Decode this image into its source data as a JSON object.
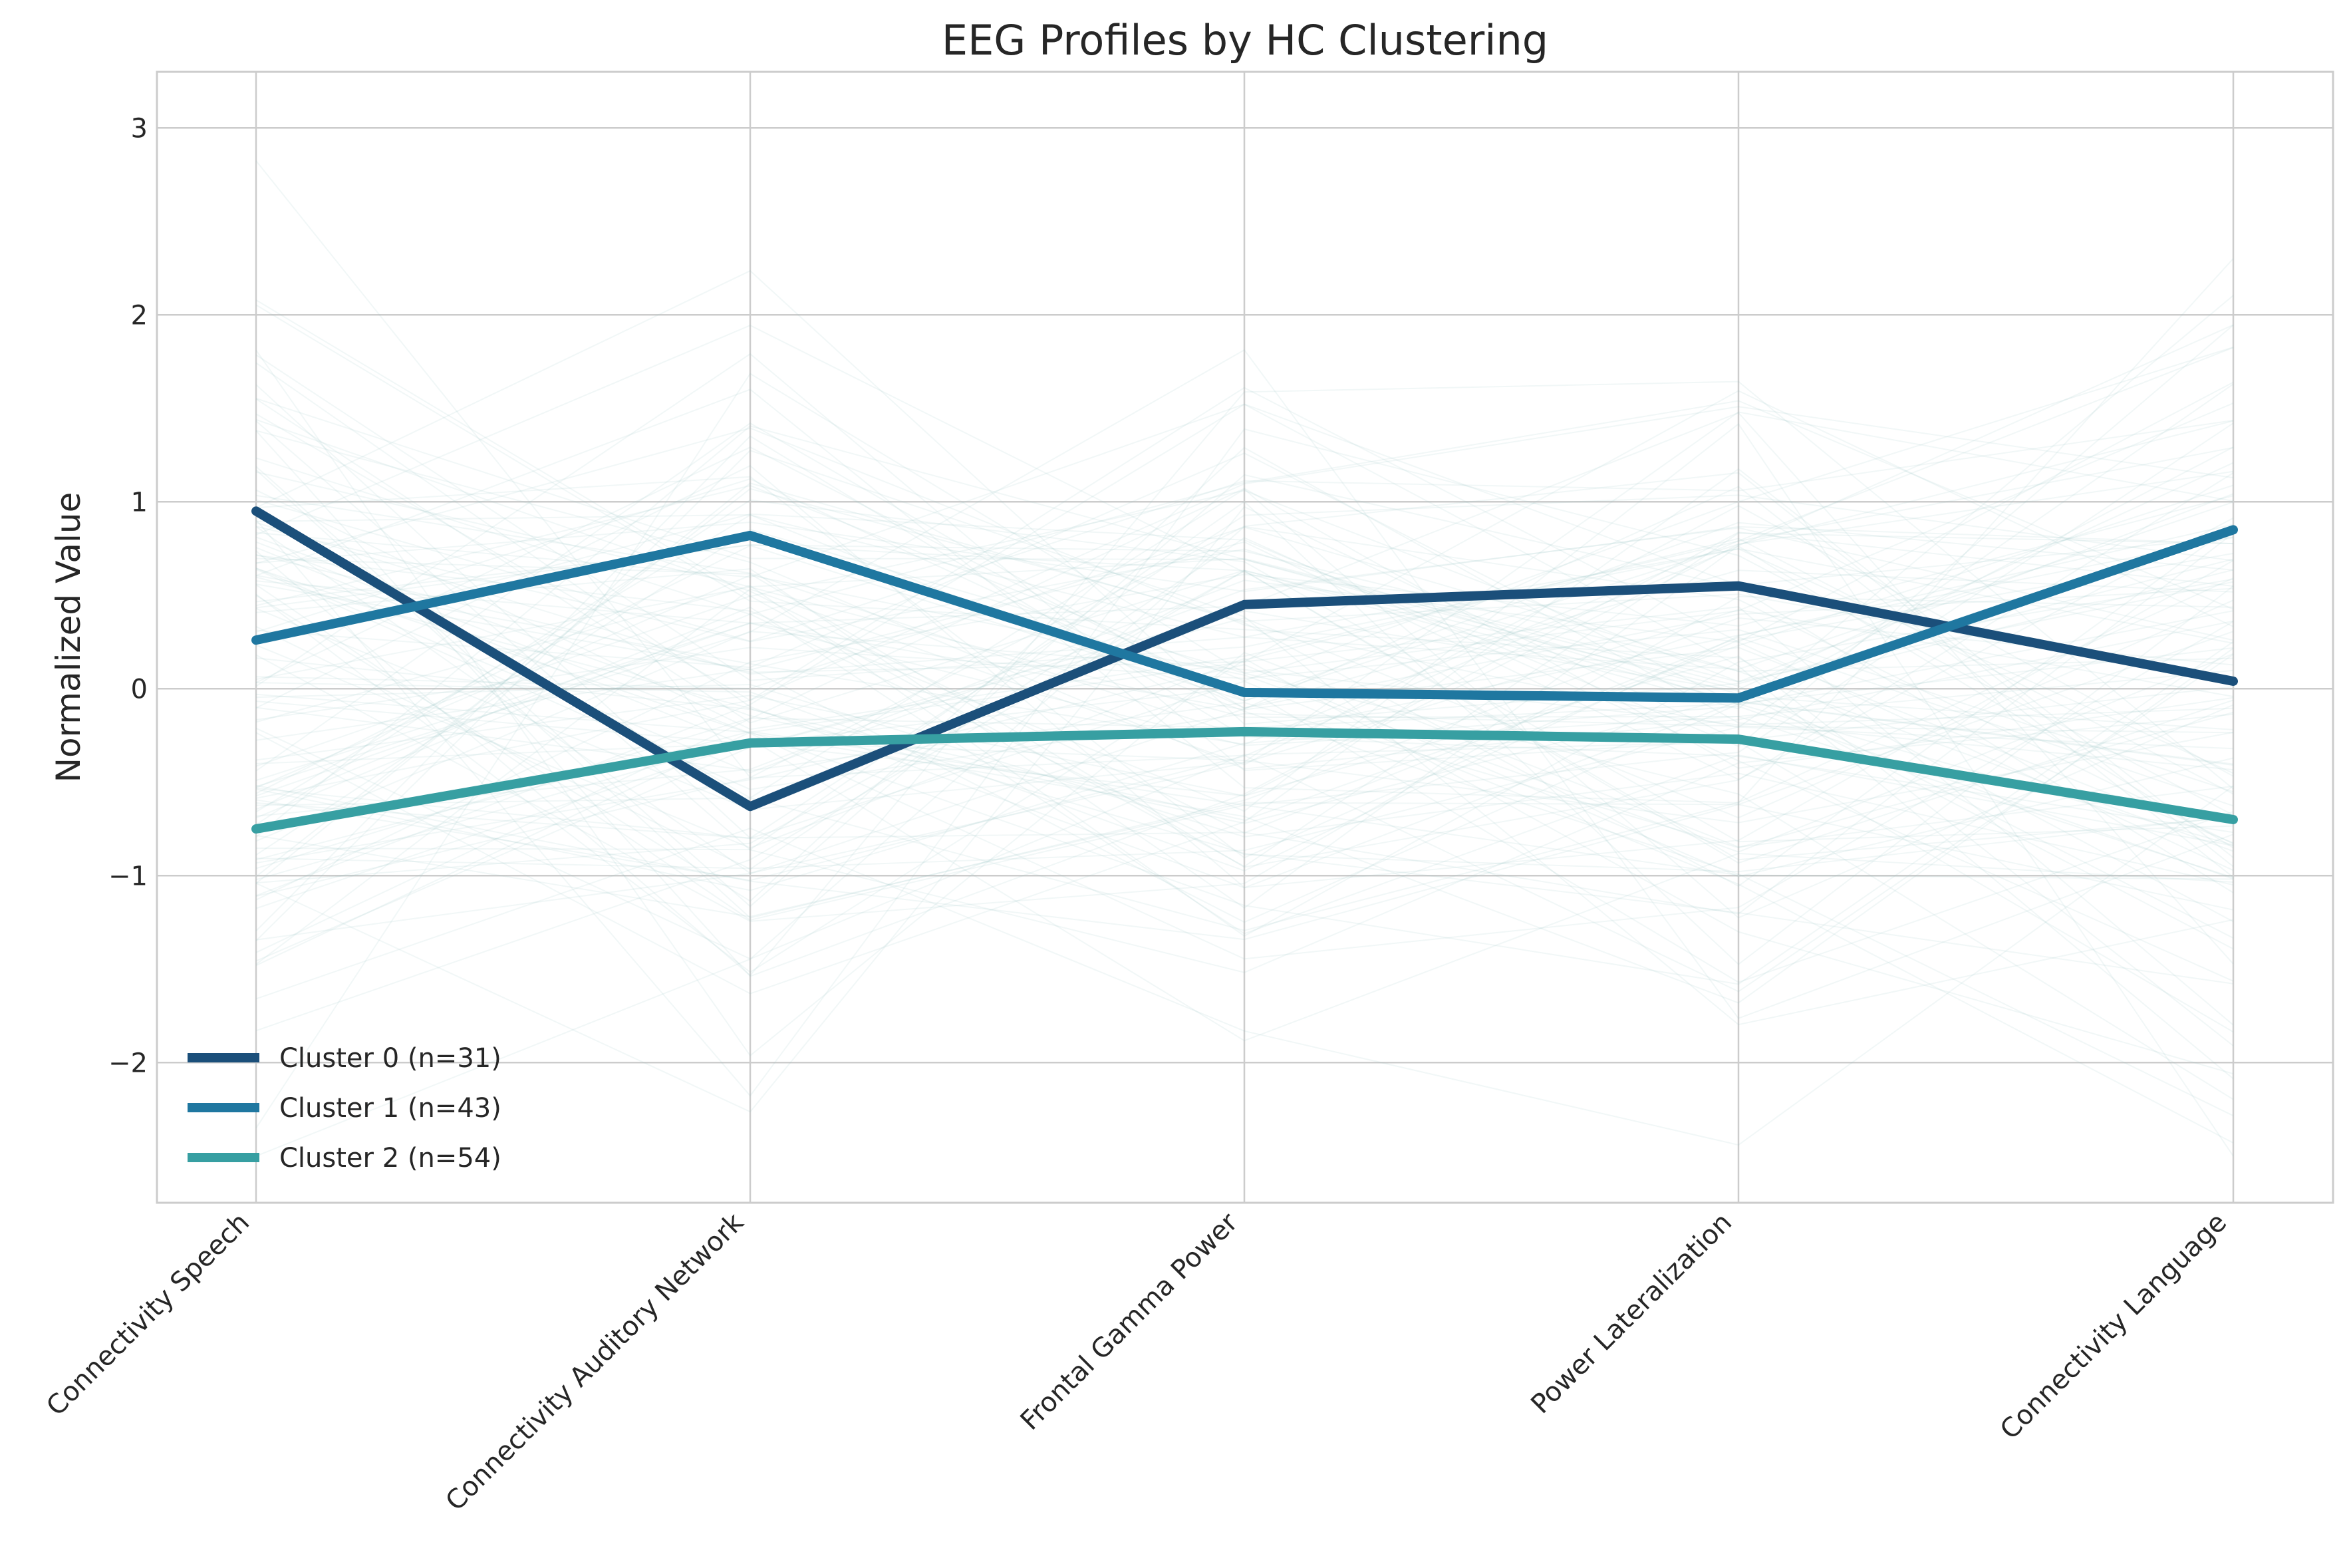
{
  "chart_data": {
    "type": "line",
    "title": "EEG Profiles by HC Clustering",
    "xlabel": "",
    "ylabel": "Normalized Value",
    "categories": [
      "Connectivity Speech",
      "Connectivity Auditory Network",
      "Frontal Gamma Power",
      "Power Lateralization",
      "Connectivity Language"
    ],
    "ylim": [
      -2.75,
      3.3
    ],
    "yticks": [
      3,
      2,
      1,
      0,
      -1,
      -2
    ],
    "ytick_labels": [
      "3",
      "2",
      "1",
      "0",
      "−1",
      "−2"
    ],
    "grid": true,
    "legend_position": "lower-left",
    "series": [
      {
        "name": "Cluster 0 (n=31)",
        "color": "#1b4f7a",
        "values": [
          0.95,
          -0.63,
          0.45,
          0.55,
          0.04
        ]
      },
      {
        "name": "Cluster 1 (n=43)",
        "color": "#1f77a0",
        "values": [
          0.26,
          0.82,
          -0.02,
          -0.05,
          0.85
        ]
      },
      {
        "name": "Cluster 2 (n=54)",
        "color": "#379fa2",
        "values": [
          -0.75,
          -0.29,
          -0.23,
          -0.27,
          -0.7
        ]
      }
    ],
    "background_lines_color": "#9ec3c9"
  }
}
